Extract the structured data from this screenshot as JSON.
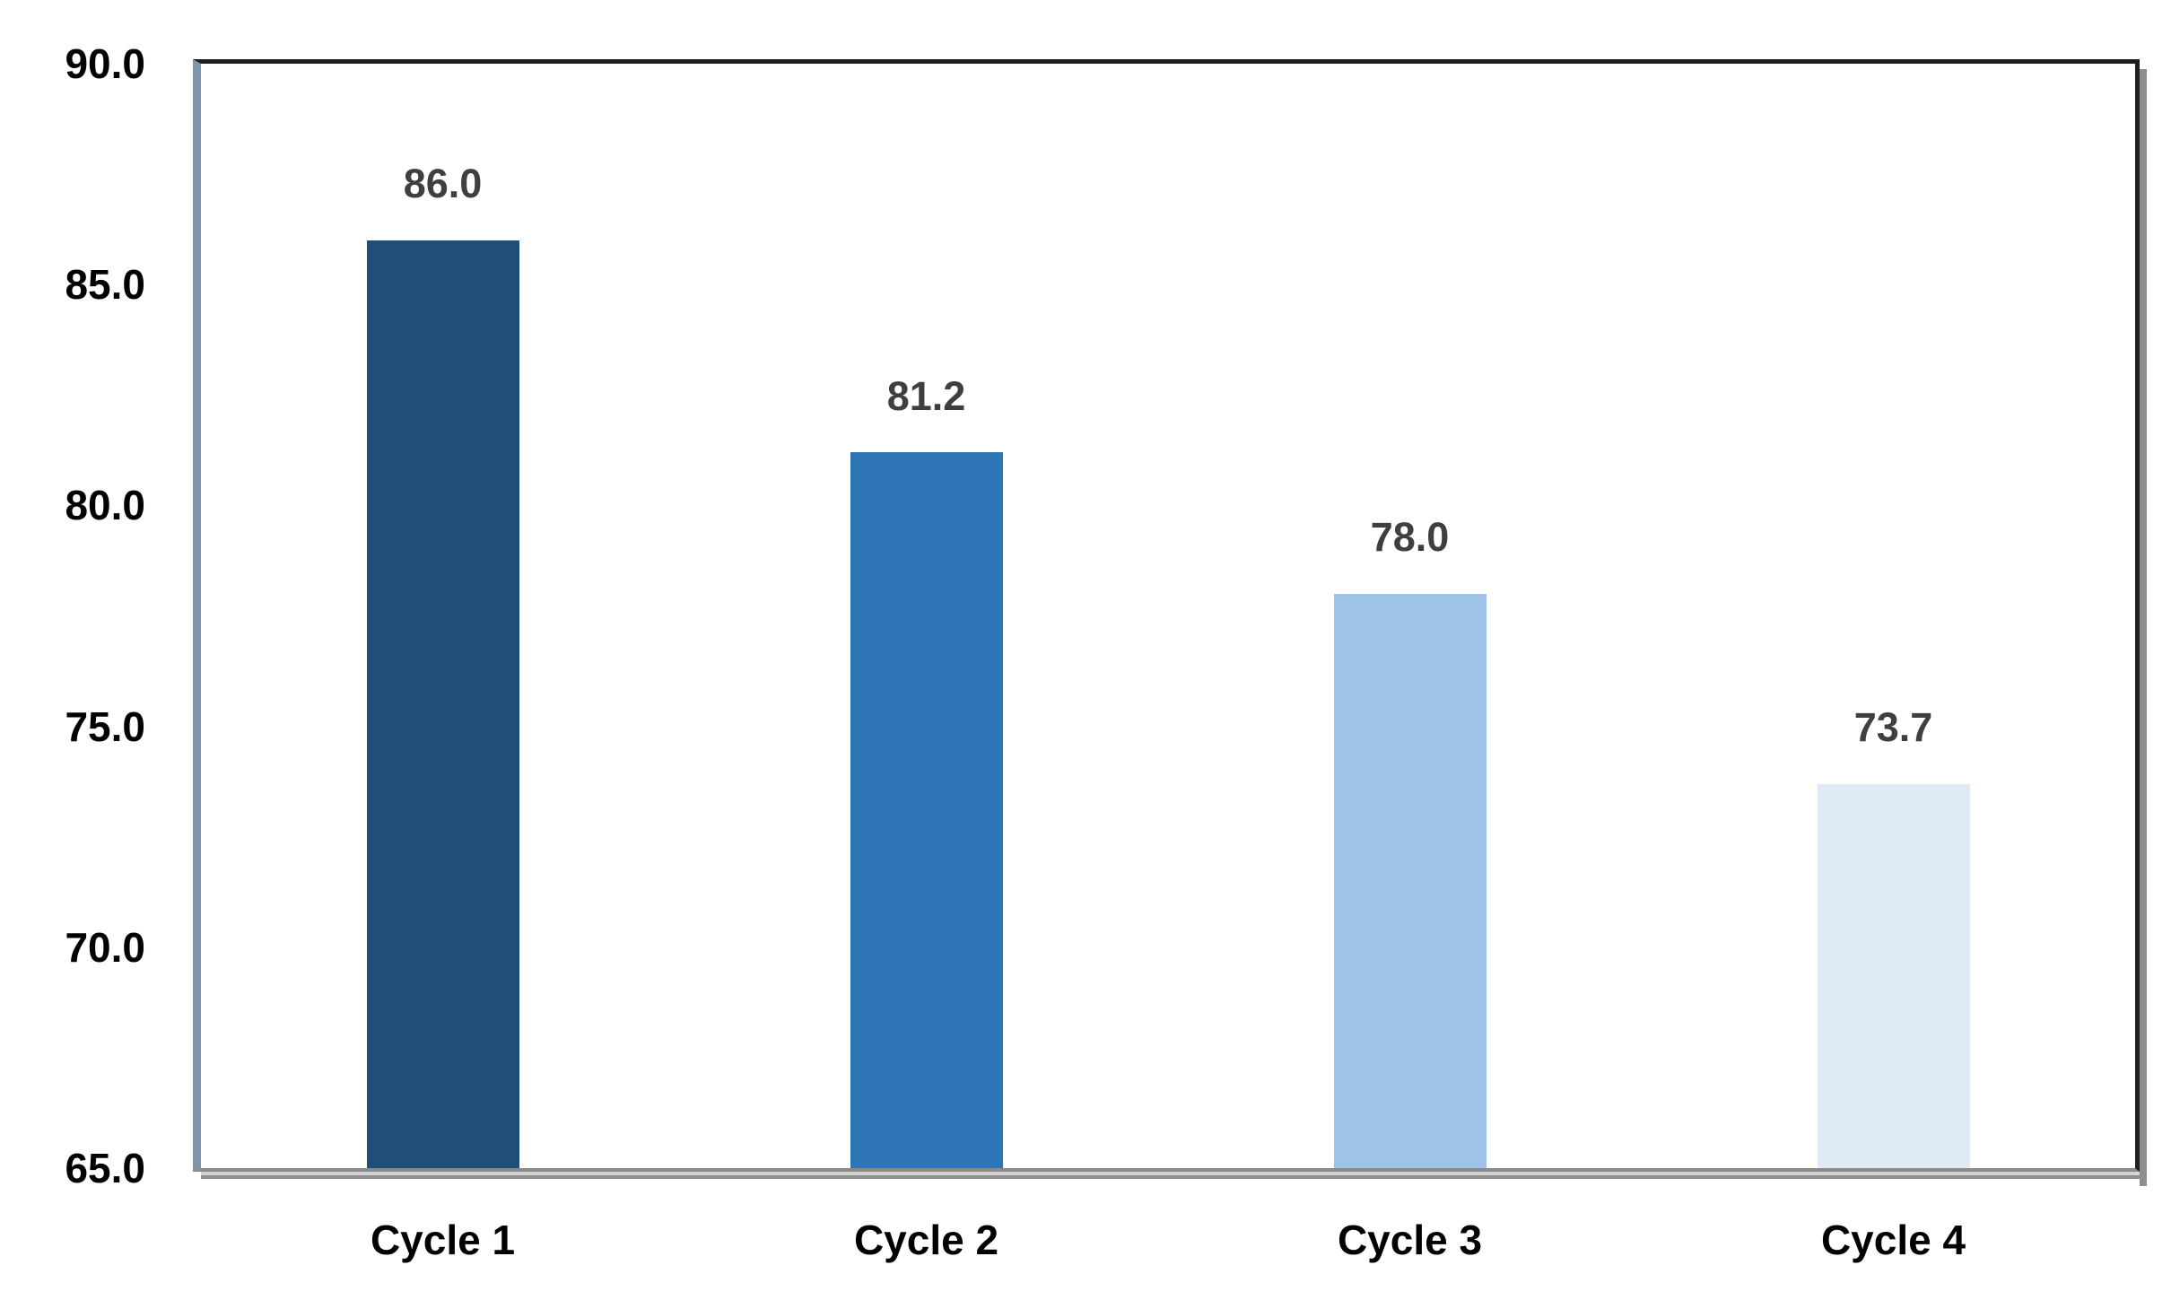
{
  "chart_data": {
    "type": "bar",
    "categories": [
      "Cycle 1",
      "Cycle 2",
      "Cycle 3",
      "Cycle 4"
    ],
    "values": [
      86.0,
      81.2,
      78.0,
      73.7
    ],
    "data_labels": [
      "86.0",
      "81.2",
      "78.0",
      "73.7"
    ],
    "title": "",
    "xlabel": "",
    "ylabel": "",
    "ylim": [
      65.0,
      90.0
    ],
    "ytick_step": 5.0,
    "ytick_labels": [
      "90.0",
      "85.0",
      "80.0",
      "75.0",
      "70.0",
      "65.0"
    ],
    "grid": "off",
    "legend": "none",
    "bar_colors": [
      "#1F4E79",
      "#2E75B6",
      "#9DC3E6",
      "#DEEBF7"
    ],
    "data_label_color": "#3F3F3F",
    "axis_text_color": "#000000",
    "frame_border_color": "#1F1F1F",
    "y_axis_line_color": "#7E95AB",
    "shadow_color": "#8F8F8F"
  }
}
